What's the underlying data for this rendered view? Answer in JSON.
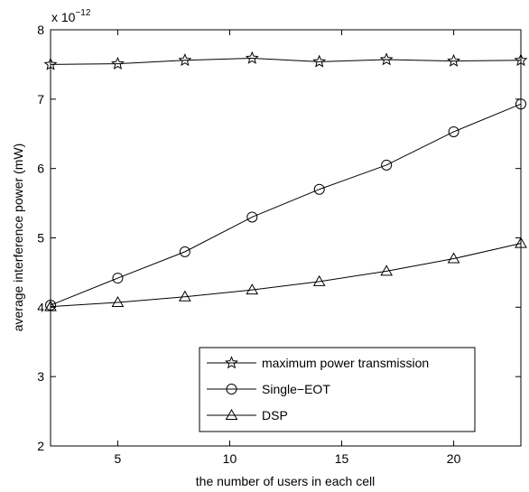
{
  "chart_data": {
    "type": "line",
    "xlabel": "the number of users in each cell",
    "ylabel": "average interference power (mW)",
    "y_multiplier": "x 10",
    "y_exponent": "−12",
    "xlim": [
      2,
      23
    ],
    "ylim": [
      2,
      8
    ],
    "xticks": [
      5,
      10,
      15,
      20
    ],
    "yticks": [
      2,
      3,
      4,
      5,
      6,
      7,
      8
    ],
    "grid": false,
    "legend_position": "lower-right",
    "x": [
      2,
      5,
      8,
      11,
      14,
      17,
      20,
      23
    ],
    "series": [
      {
        "name": "maximum power transmission",
        "marker": "star",
        "values": [
          7.5,
          7.51,
          7.56,
          7.59,
          7.54,
          7.57,
          7.55,
          7.56
        ]
      },
      {
        "name": "Single−EOT",
        "marker": "circle",
        "values": [
          4.03,
          4.42,
          4.8,
          5.3,
          5.7,
          6.05,
          6.53,
          6.93
        ]
      },
      {
        "name": "DSP",
        "marker": "triangle",
        "values": [
          4.01,
          4.07,
          4.15,
          4.25,
          4.37,
          4.52,
          4.7,
          4.92
        ]
      }
    ]
  }
}
